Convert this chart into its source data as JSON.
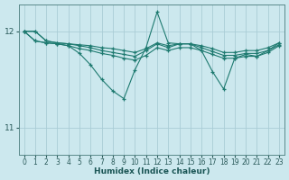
{
  "xlabel": "Humidex (Indice chaleur)",
  "ylabel": "",
  "bg_color": "#cce8ee",
  "grid_color": "#aacdd6",
  "line_color": "#1e7a70",
  "xlim": [
    -0.5,
    23.5
  ],
  "ylim": [
    10.72,
    12.28
  ],
  "yticks": [
    11,
    12
  ],
  "xticks": [
    0,
    1,
    2,
    3,
    4,
    5,
    6,
    7,
    8,
    9,
    10,
    11,
    12,
    13,
    14,
    15,
    16,
    17,
    18,
    19,
    20,
    21,
    22,
    23
  ],
  "lines": [
    {
      "x": [
        0,
        1,
        2,
        3,
        4,
        5,
        6,
        7,
        8,
        9,
        10,
        11,
        12,
        13,
        14,
        15,
        16,
        17,
        18,
        19,
        20,
        21,
        22,
        23
      ],
      "y": [
        12.0,
        12.0,
        11.9,
        11.88,
        11.87,
        11.86,
        11.85,
        11.83,
        11.82,
        11.8,
        11.78,
        11.82,
        11.88,
        11.85,
        11.87,
        11.87,
        11.85,
        11.82,
        11.78,
        11.78,
        11.8,
        11.8,
        11.83,
        11.88
      ]
    },
    {
      "x": [
        0,
        1,
        2,
        3,
        4,
        5,
        6,
        7,
        8,
        9,
        10,
        11,
        12,
        13,
        14,
        15,
        16,
        17,
        18,
        19,
        20,
        21,
        22,
        23
      ],
      "y": [
        12.0,
        12.0,
        11.9,
        11.88,
        11.87,
        11.85,
        11.83,
        11.8,
        11.78,
        11.76,
        11.74,
        11.8,
        11.87,
        11.83,
        11.87,
        11.87,
        11.83,
        11.79,
        11.75,
        11.75,
        11.77,
        11.77,
        11.8,
        11.86
      ]
    },
    {
      "x": [
        0,
        1,
        2,
        3,
        4,
        5,
        6,
        7,
        8,
        9,
        10,
        11,
        12,
        13,
        14,
        15,
        16,
        17,
        18,
        19,
        20,
        21,
        22,
        23
      ],
      "y": [
        12.0,
        11.9,
        11.88,
        11.87,
        11.85,
        11.82,
        11.8,
        11.77,
        11.75,
        11.72,
        11.7,
        11.75,
        11.83,
        11.8,
        11.83,
        11.83,
        11.8,
        11.76,
        11.72,
        11.72,
        11.74,
        11.74,
        11.78,
        11.85
      ]
    },
    {
      "x": [
        0,
        1,
        2,
        3,
        4,
        5,
        6,
        7,
        8,
        9,
        10,
        11,
        12,
        13,
        14,
        15,
        16,
        17,
        18,
        19,
        20,
        21,
        22,
        23
      ],
      "y": [
        12.0,
        11.9,
        11.88,
        11.87,
        11.85,
        11.77,
        11.65,
        11.5,
        11.38,
        11.3,
        11.6,
        11.83,
        12.2,
        11.88,
        11.87,
        11.87,
        11.8,
        11.58,
        11.4,
        11.72,
        11.76,
        11.74,
        11.8,
        11.88
      ]
    }
  ]
}
